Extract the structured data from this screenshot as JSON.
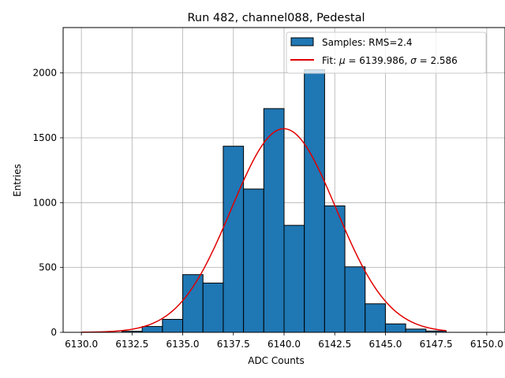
{
  "chart_data": {
    "type": "bar",
    "title": "Run 482, channel088, Pedestal",
    "xlabel": "ADC Counts",
    "ylabel": "Entries",
    "xlim": [
      6129.1,
      6150.9
    ],
    "ylim": [
      0,
      2350
    ],
    "grid": true,
    "legend_position": "top-right",
    "x_ticks": [
      6130.0,
      6132.5,
      6135.0,
      6137.5,
      6140.0,
      6142.5,
      6145.0,
      6147.5,
      6150.0
    ],
    "x_tick_labels": [
      "6130.0",
      "6132.5",
      "6135.0",
      "6137.5",
      "6140.0",
      "6142.5",
      "6145.0",
      "6147.5",
      "6150.0"
    ],
    "y_ticks": [
      0,
      500,
      1000,
      1500,
      2000
    ],
    "y_tick_labels": [
      "0",
      "500",
      "1000",
      "1500",
      "2000"
    ],
    "histogram": {
      "name": "Samples: RMS=2.4",
      "color": "#1f77b4",
      "edge_color": "#000000",
      "bins": [
        {
          "x0": 6132.0,
          "x1": 6133.0,
          "y": 8
        },
        {
          "x0": 6133.0,
          "x1": 6134.0,
          "y": 45
        },
        {
          "x0": 6134.0,
          "x1": 6135.0,
          "y": 100
        },
        {
          "x0": 6135.0,
          "x1": 6136.0,
          "y": 445
        },
        {
          "x0": 6136.0,
          "x1": 6137.0,
          "y": 380
        },
        {
          "x0": 6137.0,
          "x1": 6138.0,
          "y": 1435
        },
        {
          "x0": 6138.0,
          "x1": 6139.0,
          "y": 1105
        },
        {
          "x0": 6139.0,
          "x1": 6140.0,
          "y": 1725
        },
        {
          "x0": 6140.0,
          "x1": 6141.0,
          "y": 825
        },
        {
          "x0": 6141.0,
          "x1": 6142.0,
          "y": 2025
        },
        {
          "x0": 6142.0,
          "x1": 6143.0,
          "y": 975
        },
        {
          "x0": 6143.0,
          "x1": 6144.0,
          "y": 505
        },
        {
          "x0": 6144.0,
          "x1": 6145.0,
          "y": 220
        },
        {
          "x0": 6145.0,
          "x1": 6146.0,
          "y": 65
        },
        {
          "x0": 6146.0,
          "x1": 6147.0,
          "y": 25
        },
        {
          "x0": 6147.0,
          "x1": 6148.0,
          "y": 10
        }
      ]
    },
    "fit": {
      "name_prefix": "Fit: ",
      "mu_symbol": "μ",
      "sigma_symbol": "σ",
      "mu": 6139.986,
      "sigma": 2.586,
      "mu_text": " = 6139.986, ",
      "sigma_text": " = 2.586",
      "amplitude": 1570,
      "x_range": [
        6130.0,
        6148.0
      ],
      "color": "#e00000"
    }
  }
}
